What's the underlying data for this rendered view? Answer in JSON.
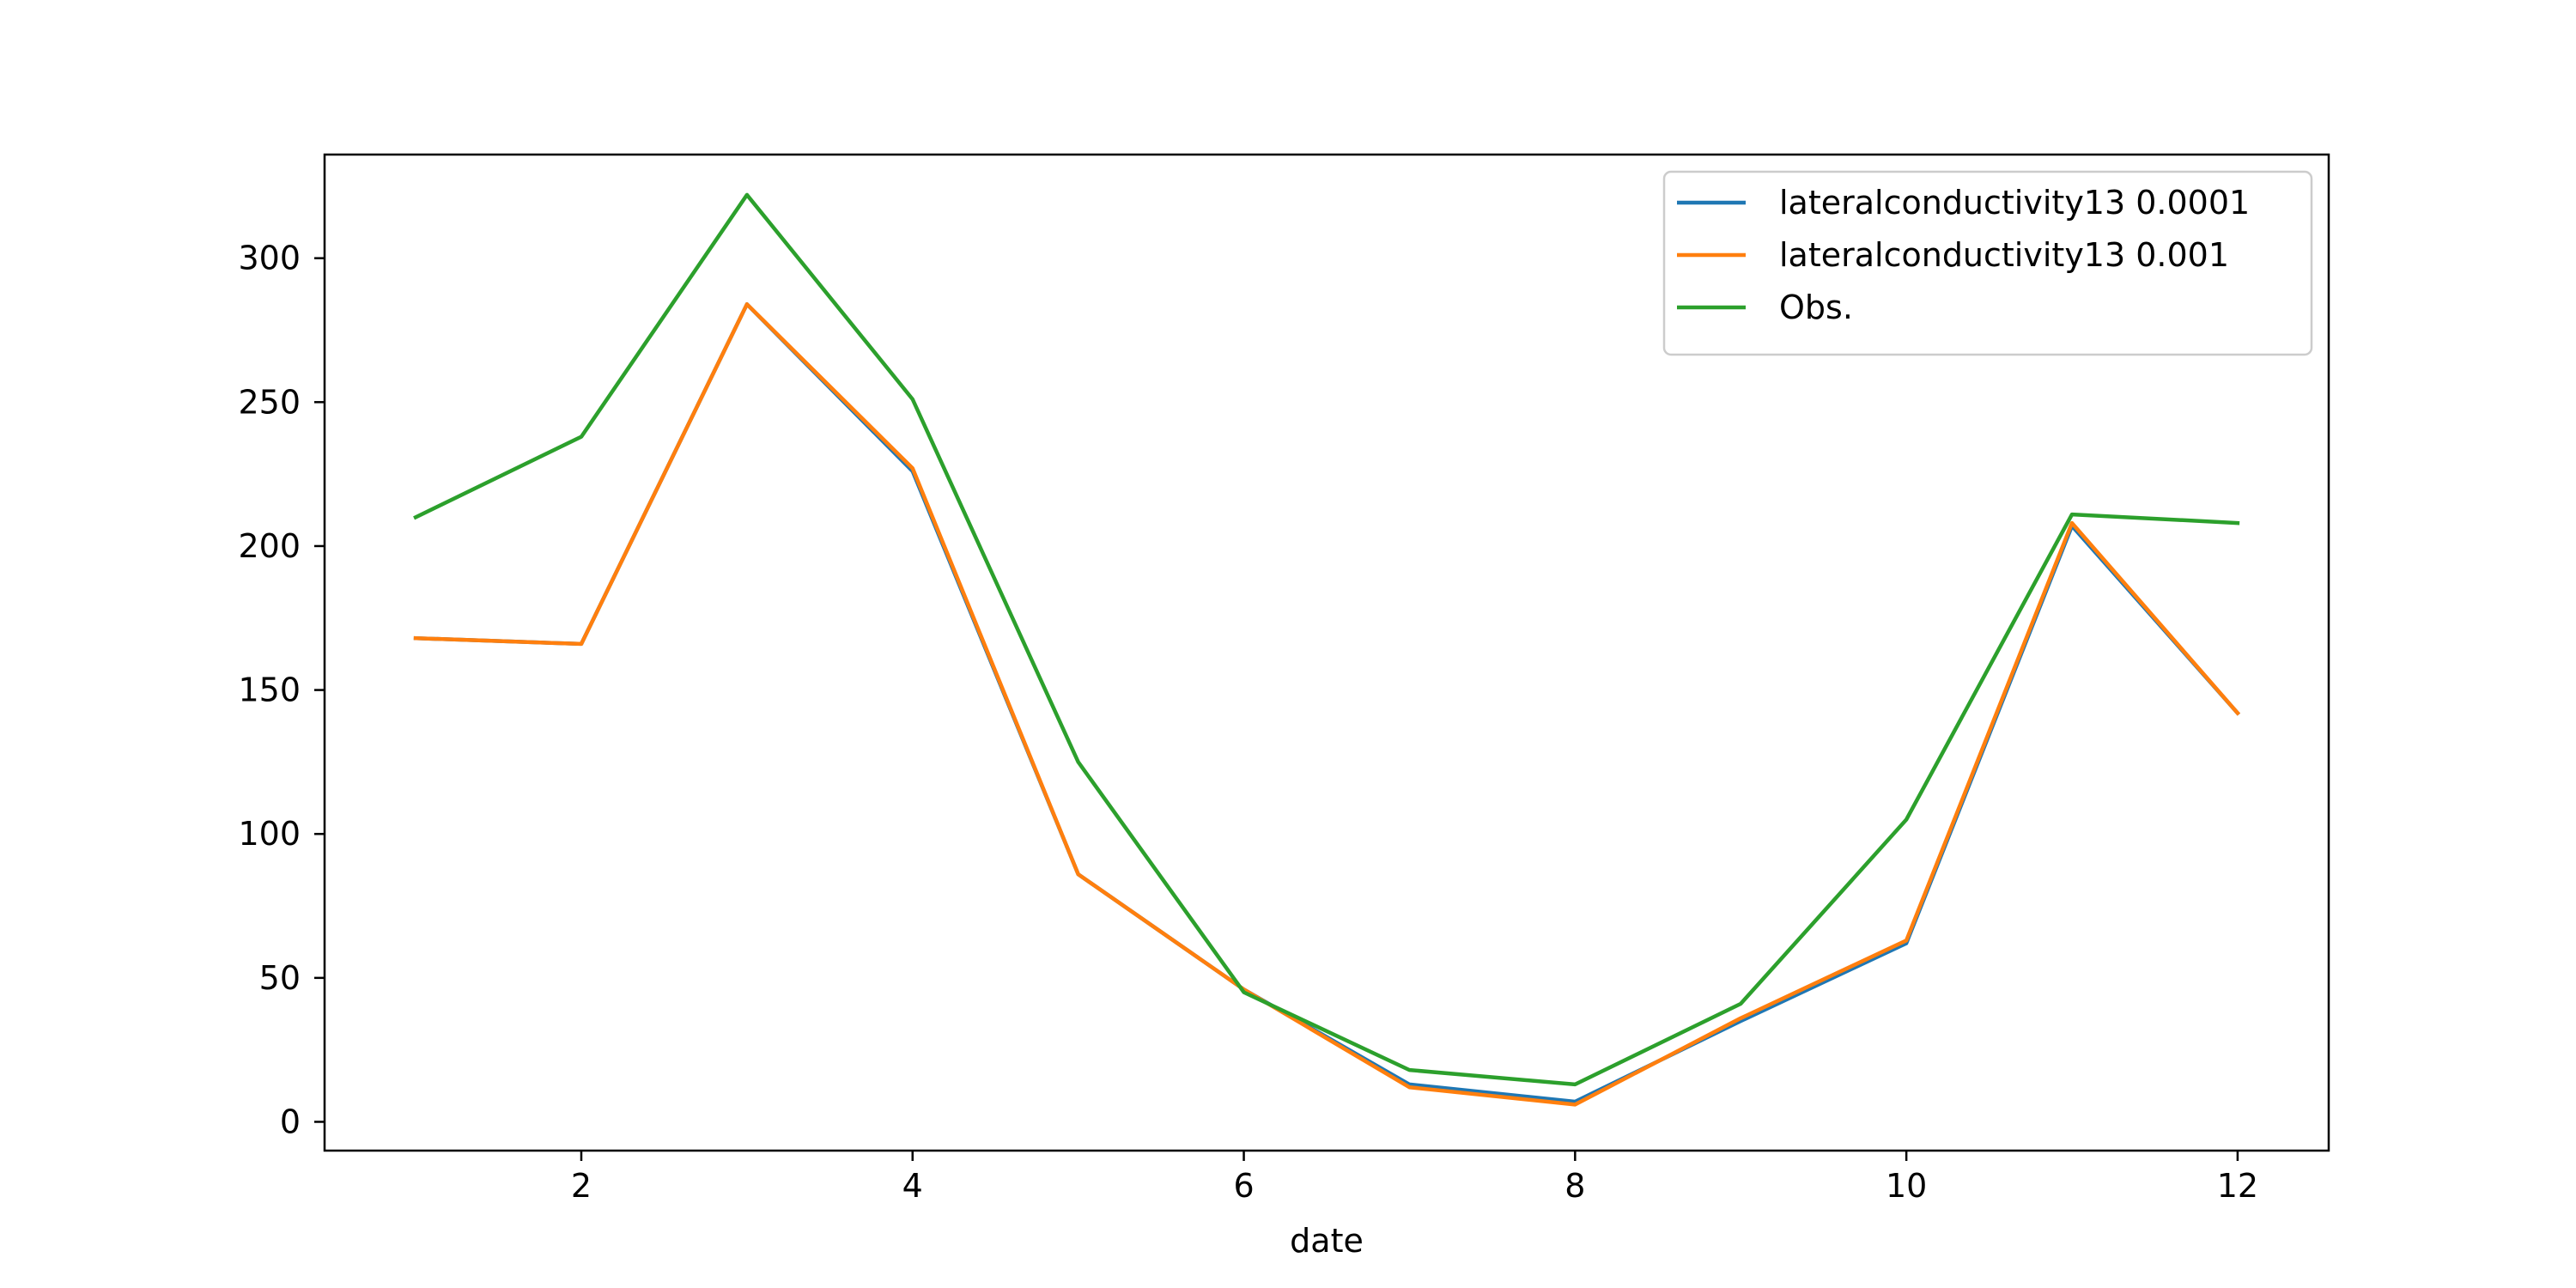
{
  "chart_data": {
    "type": "line",
    "title": "",
    "xlabel": "date",
    "ylabel": "",
    "xlim": [
      0.45,
      12.55
    ],
    "ylim": [
      -10,
      336
    ],
    "xticks": [
      2,
      4,
      6,
      8,
      10,
      12
    ],
    "yticks": [
      0,
      50,
      100,
      150,
      200,
      250,
      300
    ],
    "grid": false,
    "legend_position": "top-right",
    "x": [
      1,
      2,
      3,
      4,
      5,
      6,
      7,
      8,
      9,
      10,
      11,
      12
    ],
    "series": [
      {
        "name": "lateralconductivity13 0.0001",
        "color": "#1f77b4",
        "values": [
          168,
          166,
          284,
          226,
          86,
          46,
          13,
          7,
          35,
          62,
          207,
          142
        ]
      },
      {
        "name": "lateralconductivity13 0.001",
        "color": "#ff7f0e",
        "values": [
          168,
          166,
          284,
          227,
          86,
          46,
          12,
          6,
          36,
          63,
          208,
          142
        ]
      },
      {
        "name": "Obs.",
        "color": "#2ca02c",
        "values": [
          210,
          238,
          322,
          251,
          125,
          45,
          18,
          13,
          41,
          105,
          211,
          208
        ]
      }
    ]
  }
}
